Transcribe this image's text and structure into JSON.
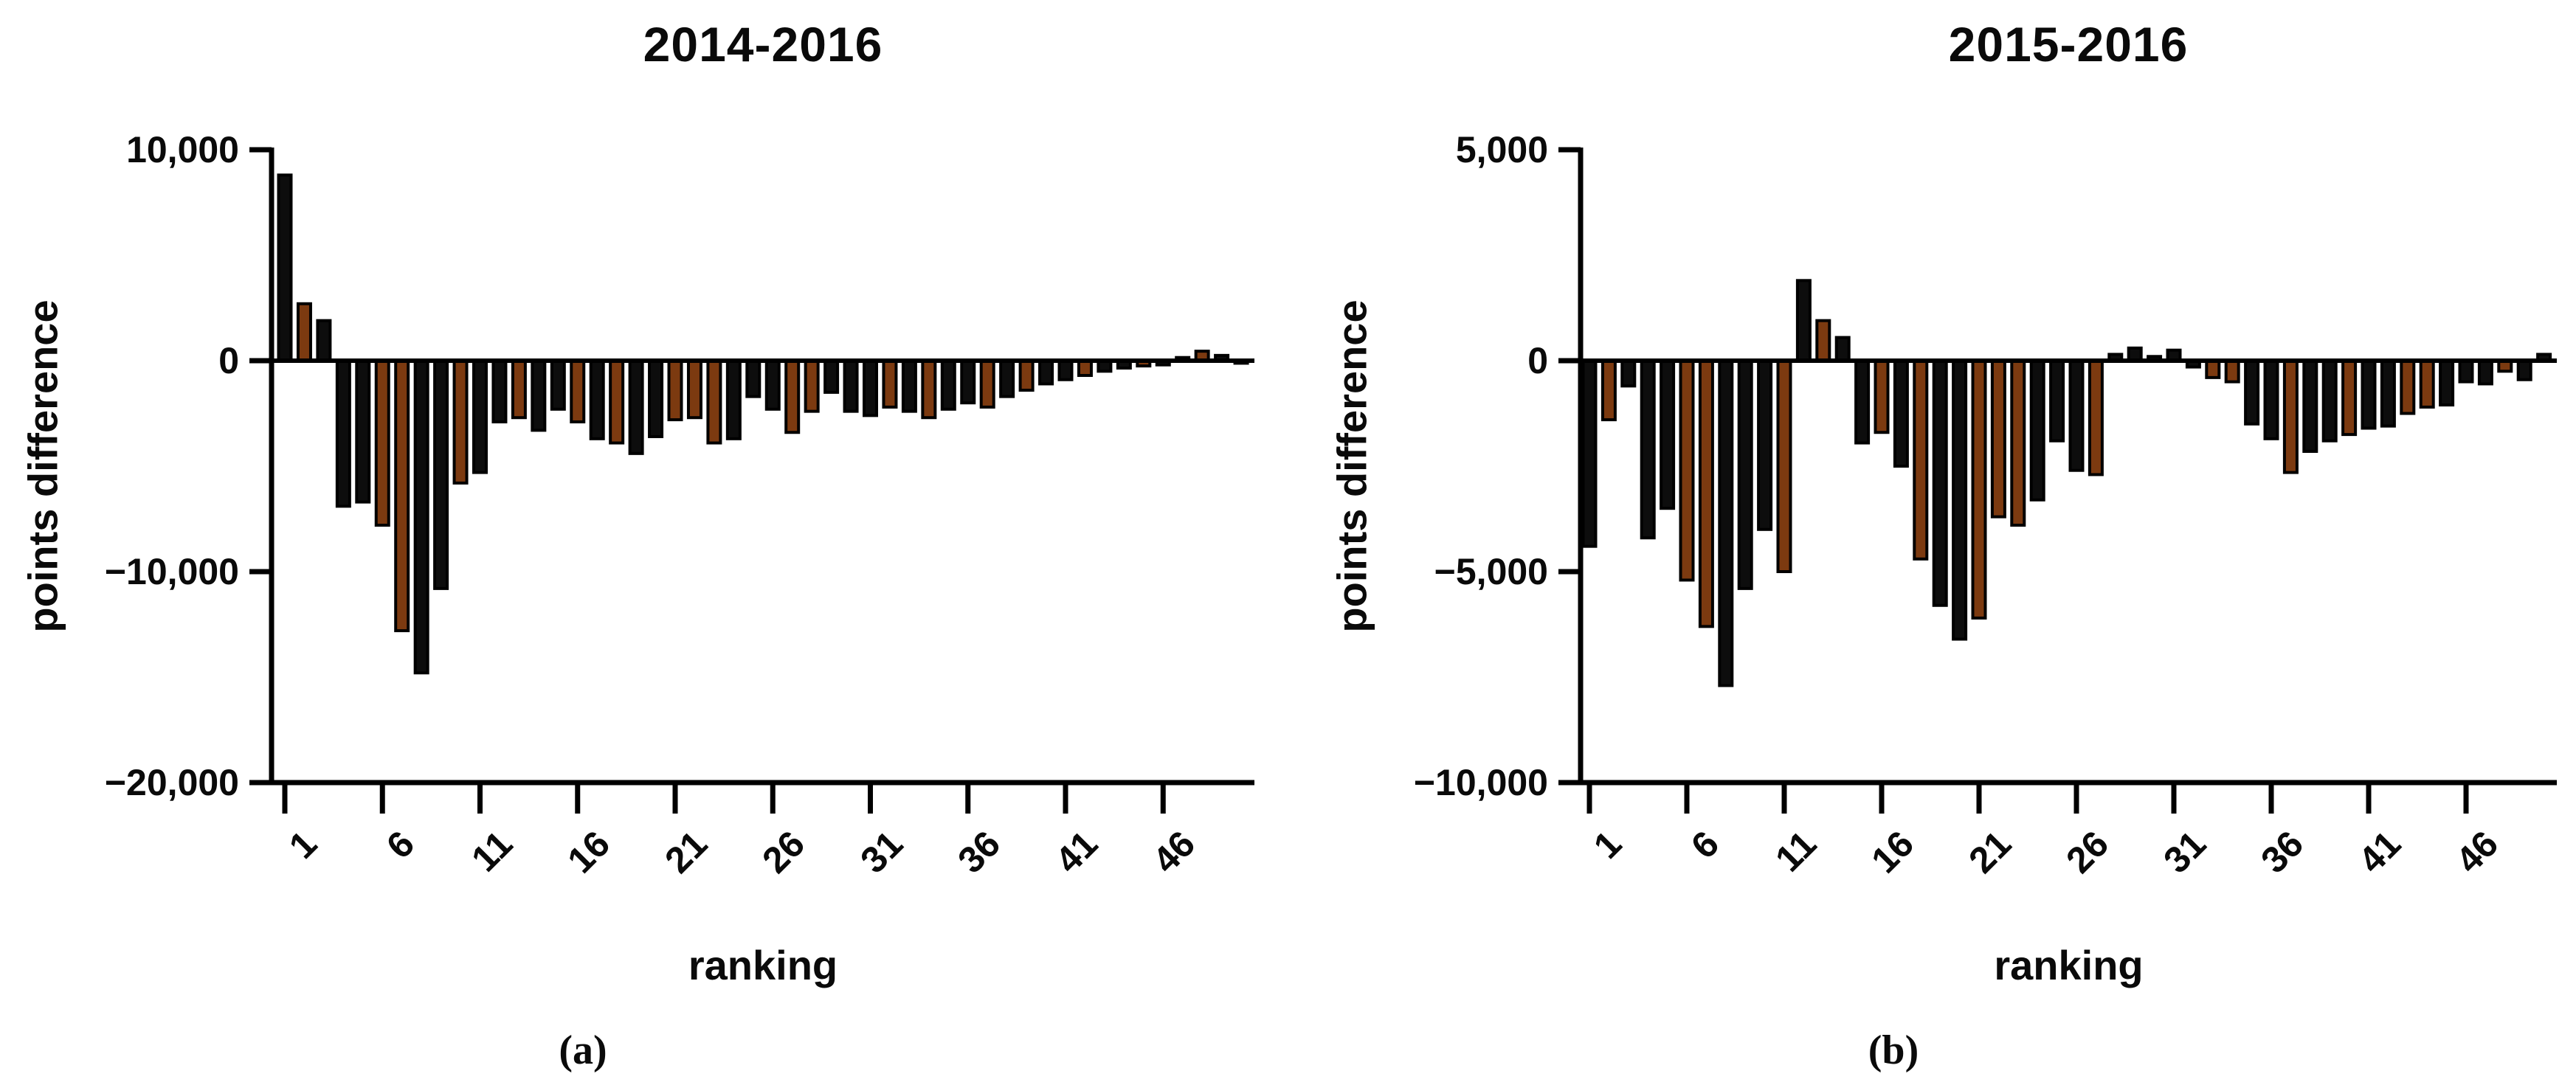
{
  "colors": {
    "black_bar": "#0d0d0d",
    "orange_bar": "#7c3a10",
    "axis": "#000000",
    "text": "#0a0a0a"
  },
  "chart_data": [
    {
      "type": "bar",
      "title": "2014-2016",
      "caption": "(a)",
      "xlabel": "ranking",
      "ylabel": "points difference",
      "ylim": [
        -20000,
        10000
      ],
      "grid": false,
      "legend": "none",
      "y_ticks": [
        {
          "label": "10,000",
          "value": 10000
        },
        {
          "label": "0",
          "value": 0
        },
        {
          "label": "−10,000",
          "value": -10000
        },
        {
          "label": "−20,000",
          "value": -20000
        }
      ],
      "x_tick_labels": [
        "1",
        "6",
        "11",
        "16",
        "21",
        "26",
        "31",
        "36",
        "41",
        "46"
      ],
      "x_tick_values": [
        1,
        6,
        11,
        16,
        21,
        26,
        31,
        36,
        41,
        46
      ],
      "x": [
        1,
        2,
        3,
        4,
        5,
        6,
        7,
        8,
        9,
        10,
        11,
        12,
        13,
        14,
        15,
        16,
        17,
        18,
        19,
        20,
        21,
        22,
        23,
        24,
        25,
        26,
        27,
        28,
        29,
        30,
        31,
        32,
        33,
        34,
        35,
        36,
        37,
        38,
        39,
        40,
        41,
        42,
        43,
        44,
        45,
        46,
        47,
        48,
        49,
        50
      ],
      "values": [
        8800,
        2700,
        1900,
        -6900,
        -6700,
        -7800,
        -12800,
        -14800,
        -10800,
        -5800,
        -5300,
        -2900,
        -2700,
        -3300,
        -2300,
        -2900,
        -3700,
        -3900,
        -4400,
        -3600,
        -2800,
        -2700,
        -3900,
        -3700,
        -1700,
        -2300,
        -3400,
        -2400,
        -1500,
        -2400,
        -2600,
        -2200,
        -2400,
        -2700,
        -2300,
        -2000,
        -2200,
        -1700,
        -1400,
        -1100,
        -900,
        -700,
        -500,
        -350,
        -250,
        -200,
        150,
        450,
        250,
        -120
      ],
      "bar_colors": [
        "b",
        "o",
        "b",
        "b",
        "b",
        "o",
        "o",
        "b",
        "b",
        "o",
        "b",
        "b",
        "o",
        "b",
        "b",
        "o",
        "b",
        "o",
        "b",
        "b",
        "o",
        "o",
        "o",
        "b",
        "b",
        "b",
        "o",
        "o",
        "b",
        "b",
        "b",
        "o",
        "b",
        "o",
        "b",
        "b",
        "o",
        "b",
        "o",
        "b",
        "b",
        "o",
        "b",
        "b",
        "o",
        "b",
        "b",
        "o",
        "b",
        "b"
      ]
    },
    {
      "type": "bar",
      "title": "2015-2016",
      "caption": "(b)",
      "xlabel": "ranking",
      "ylabel": "points difference",
      "ylim": [
        -10000,
        5000
      ],
      "grid": false,
      "legend": "none",
      "y_ticks": [
        {
          "label": "5,000",
          "value": 5000
        },
        {
          "label": "0",
          "value": 0
        },
        {
          "label": "−5,000",
          "value": -5000
        },
        {
          "label": "−10,000",
          "value": -10000
        }
      ],
      "x_tick_labels": [
        "1",
        "6",
        "11",
        "16",
        "21",
        "26",
        "31",
        "36",
        "41",
        "46"
      ],
      "x_tick_values": [
        1,
        6,
        11,
        16,
        21,
        26,
        31,
        36,
        41,
        46
      ],
      "x": [
        1,
        2,
        3,
        4,
        5,
        6,
        7,
        8,
        9,
        10,
        11,
        12,
        13,
        14,
        15,
        16,
        17,
        18,
        19,
        20,
        21,
        22,
        23,
        24,
        25,
        26,
        27,
        28,
        29,
        30,
        31,
        32,
        33,
        34,
        35,
        36,
        37,
        38,
        39,
        40,
        41,
        42,
        43,
        44,
        45,
        46,
        47,
        48,
        49,
        50
      ],
      "values": [
        -4400,
        -1400,
        -600,
        -4200,
        -3500,
        -5200,
        -6300,
        -7700,
        -5400,
        -4000,
        -5000,
        1900,
        950,
        550,
        -1950,
        -1700,
        -2500,
        -4700,
        -5800,
        -6600,
        -6100,
        -3700,
        -3900,
        -3300,
        -1900,
        -2600,
        -2700,
        150,
        300,
        100,
        250,
        -150,
        -400,
        -500,
        -1500,
        -1850,
        -2650,
        -2150,
        -1900,
        -1750,
        -1600,
        -1550,
        -1250,
        -1100,
        -1050,
        -500,
        -550,
        -250,
        -450,
        150
      ],
      "bar_colors": [
        "b",
        "o",
        "b",
        "b",
        "b",
        "o",
        "o",
        "b",
        "b",
        "b",
        "o",
        "b",
        "o",
        "b",
        "b",
        "o",
        "b",
        "o",
        "b",
        "b",
        "o",
        "o",
        "o",
        "b",
        "b",
        "b",
        "o",
        "b",
        "b",
        "b",
        "b",
        "b",
        "o",
        "o",
        "b",
        "b",
        "o",
        "b",
        "b",
        "o",
        "b",
        "b",
        "o",
        "o",
        "b",
        "b",
        "b",
        "o",
        "b",
        "b"
      ]
    }
  ]
}
